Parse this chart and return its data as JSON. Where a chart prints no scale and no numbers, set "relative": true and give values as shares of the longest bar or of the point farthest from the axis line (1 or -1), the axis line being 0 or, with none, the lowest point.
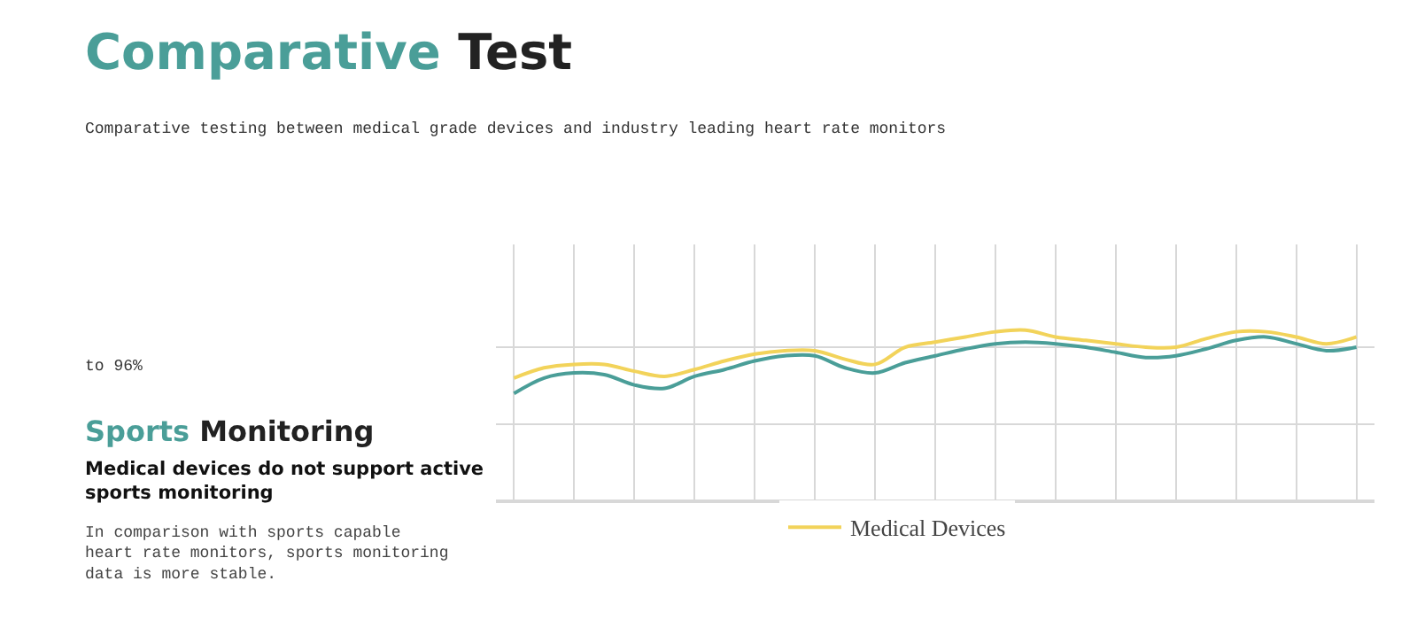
{
  "chart_data": {
    "type": "line",
    "title": "Comparative Test",
    "subtitle": "Comparative testing between medical grade devices and industry leading heart rate monitors",
    "annotations": [
      "to 96%",
      "Sports Monitoring",
      "Medical devices do not support active sports monitoring",
      "In comparison with sports capable heart rate monitors, sports monitoring data is more stable."
    ],
    "categories": [
      null,
      null,
      null,
      null,
      null,
      null,
      null,
      null,
      null,
      null,
      null,
      null,
      null,
      null,
      null,
      null,
      null,
      null,
      null,
      null,
      null,
      null,
      null,
      null,
      null,
      null,
      null,
      null,
      null
    ],
    "relative": true,
    "grid": true,
    "legend": "bottom",
    "marker": "none",
    "line_style": "solid",
    "series": [
      {
        "color": "#4a9e98",
        "values": [
          0.63,
          0.72,
          0.75,
          0.74,
          0.68,
          0.66,
          0.73,
          0.77,
          0.82,
          0.85,
          0.85,
          0.78,
          0.75,
          0.81,
          0.85,
          0.89,
          0.92,
          0.93,
          0.92,
          0.9,
          0.87,
          0.84,
          0.85,
          0.89,
          0.94,
          0.96,
          0.92,
          0.88,
          0.9
        ]
      },
      {
        "name": "Medical Devices",
        "color": "#f2d35a",
        "values": [
          0.72,
          0.78,
          0.8,
          0.8,
          0.76,
          0.73,
          0.77,
          0.82,
          0.86,
          0.88,
          0.88,
          0.83,
          0.8,
          0.9,
          0.93,
          0.96,
          0.99,
          1.0,
          0.96,
          0.94,
          0.92,
          0.9,
          0.9,
          0.95,
          0.99,
          0.99,
          0.96,
          0.92,
          0.96
        ]
      }
    ]
  }
}
